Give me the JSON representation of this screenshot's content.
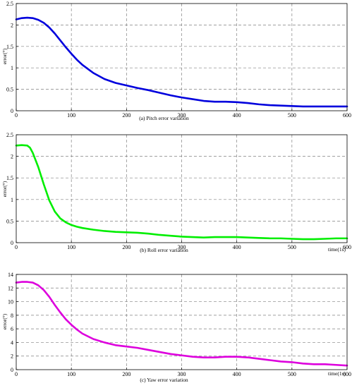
{
  "chart_data": [
    {
      "type": "line",
      "caption": "(a) Pitch error variation",
      "ylabel": "error(°)",
      "xlabel": "",
      "xlim": [
        0,
        600
      ],
      "ylim": [
        0,
        2.5
      ],
      "xticks": [
        0,
        100,
        200,
        300,
        400,
        500,
        600
      ],
      "yticks": [
        0,
        0.5,
        1,
        1.5,
        2,
        2.5
      ],
      "xtick_labels": [
        "0",
        "100",
        "200",
        "300",
        "400",
        "500",
        "600"
      ],
      "ytick_labels": [
        "0",
        "0.5",
        "1",
        "1.5",
        "2",
        "2.5"
      ],
      "grid": true,
      "color": "#0000dd",
      "series": [
        {
          "x": [
            0,
            10,
            20,
            30,
            40,
            50,
            60,
            70,
            80,
            90,
            100,
            110,
            120,
            140,
            160,
            180,
            200,
            220,
            240,
            260,
            280,
            300,
            320,
            340,
            360,
            380,
            400,
            420,
            440,
            460,
            480,
            500,
            520,
            540,
            560,
            580,
            600
          ],
          "values": [
            2.13,
            2.16,
            2.17,
            2.16,
            2.12,
            2.05,
            1.94,
            1.8,
            1.64,
            1.48,
            1.33,
            1.19,
            1.07,
            0.88,
            0.74,
            0.65,
            0.59,
            0.53,
            0.48,
            0.42,
            0.36,
            0.31,
            0.27,
            0.23,
            0.21,
            0.21,
            0.2,
            0.18,
            0.15,
            0.13,
            0.12,
            0.11,
            0.1,
            0.1,
            0.1,
            0.1,
            0.1
          ]
        }
      ]
    },
    {
      "type": "line",
      "caption": "(b) Roll error variation",
      "ylabel": "error(°)",
      "xlabel": "time(1s)",
      "xlim": [
        0,
        600
      ],
      "ylim": [
        0,
        2.5
      ],
      "xticks": [
        0,
        100,
        200,
        300,
        400,
        500,
        600
      ],
      "yticks": [
        0,
        0.5,
        1,
        1.5,
        2,
        2.5
      ],
      "xtick_labels": [
        "0",
        "100",
        "200",
        "300",
        "400",
        "500",
        "600"
      ],
      "ytick_labels": [
        "0",
        "0.5",
        "1",
        "1.5",
        "2",
        "2.5"
      ],
      "grid": true,
      "color": "#00ee00",
      "series": [
        {
          "x": [
            0,
            10,
            20,
            25,
            30,
            40,
            50,
            60,
            70,
            80,
            90,
            100,
            110,
            120,
            140,
            160,
            180,
            200,
            220,
            240,
            260,
            280,
            300,
            320,
            340,
            360,
            380,
            400,
            420,
            440,
            460,
            480,
            500,
            520,
            540,
            560,
            580,
            600
          ],
          "values": [
            2.25,
            2.26,
            2.25,
            2.2,
            2.08,
            1.75,
            1.35,
            0.98,
            0.72,
            0.56,
            0.47,
            0.41,
            0.37,
            0.34,
            0.3,
            0.27,
            0.25,
            0.24,
            0.23,
            0.21,
            0.18,
            0.16,
            0.14,
            0.13,
            0.12,
            0.13,
            0.13,
            0.13,
            0.12,
            0.11,
            0.1,
            0.1,
            0.09,
            0.08,
            0.08,
            0.09,
            0.1,
            0.1
          ]
        }
      ]
    },
    {
      "type": "line",
      "caption": "(c) Yaw error variation",
      "ylabel": "error(°)",
      "xlabel": "time(1s)",
      "xlim": [
        0,
        600
      ],
      "ylim": [
        0,
        14
      ],
      "xticks": [
        0,
        100,
        200,
        300,
        400,
        500,
        600
      ],
      "yticks": [
        0,
        2,
        4,
        6,
        8,
        10,
        12,
        14
      ],
      "xtick_labels": [
        "0",
        "100",
        "200",
        "300",
        "400",
        "500",
        "600"
      ],
      "ytick_labels": [
        "0",
        "2",
        "4",
        "6",
        "8",
        "10",
        "12",
        "14"
      ],
      "grid": true,
      "color": "#dd00dd",
      "series": [
        {
          "x": [
            0,
            10,
            20,
            30,
            40,
            50,
            60,
            70,
            80,
            90,
            100,
            110,
            120,
            140,
            160,
            180,
            200,
            220,
            240,
            260,
            280,
            300,
            320,
            340,
            360,
            380,
            400,
            420,
            440,
            460,
            480,
            500,
            520,
            540,
            560,
            580,
            600
          ],
          "values": [
            12.8,
            12.9,
            12.9,
            12.8,
            12.4,
            11.7,
            10.7,
            9.5,
            8.4,
            7.4,
            6.6,
            5.9,
            5.3,
            4.5,
            4.0,
            3.6,
            3.4,
            3.2,
            2.9,
            2.6,
            2.3,
            2.1,
            1.9,
            1.8,
            1.8,
            1.9,
            1.9,
            1.8,
            1.6,
            1.4,
            1.2,
            1.1,
            0.9,
            0.8,
            0.8,
            0.7,
            0.6
          ]
        }
      ]
    }
  ]
}
